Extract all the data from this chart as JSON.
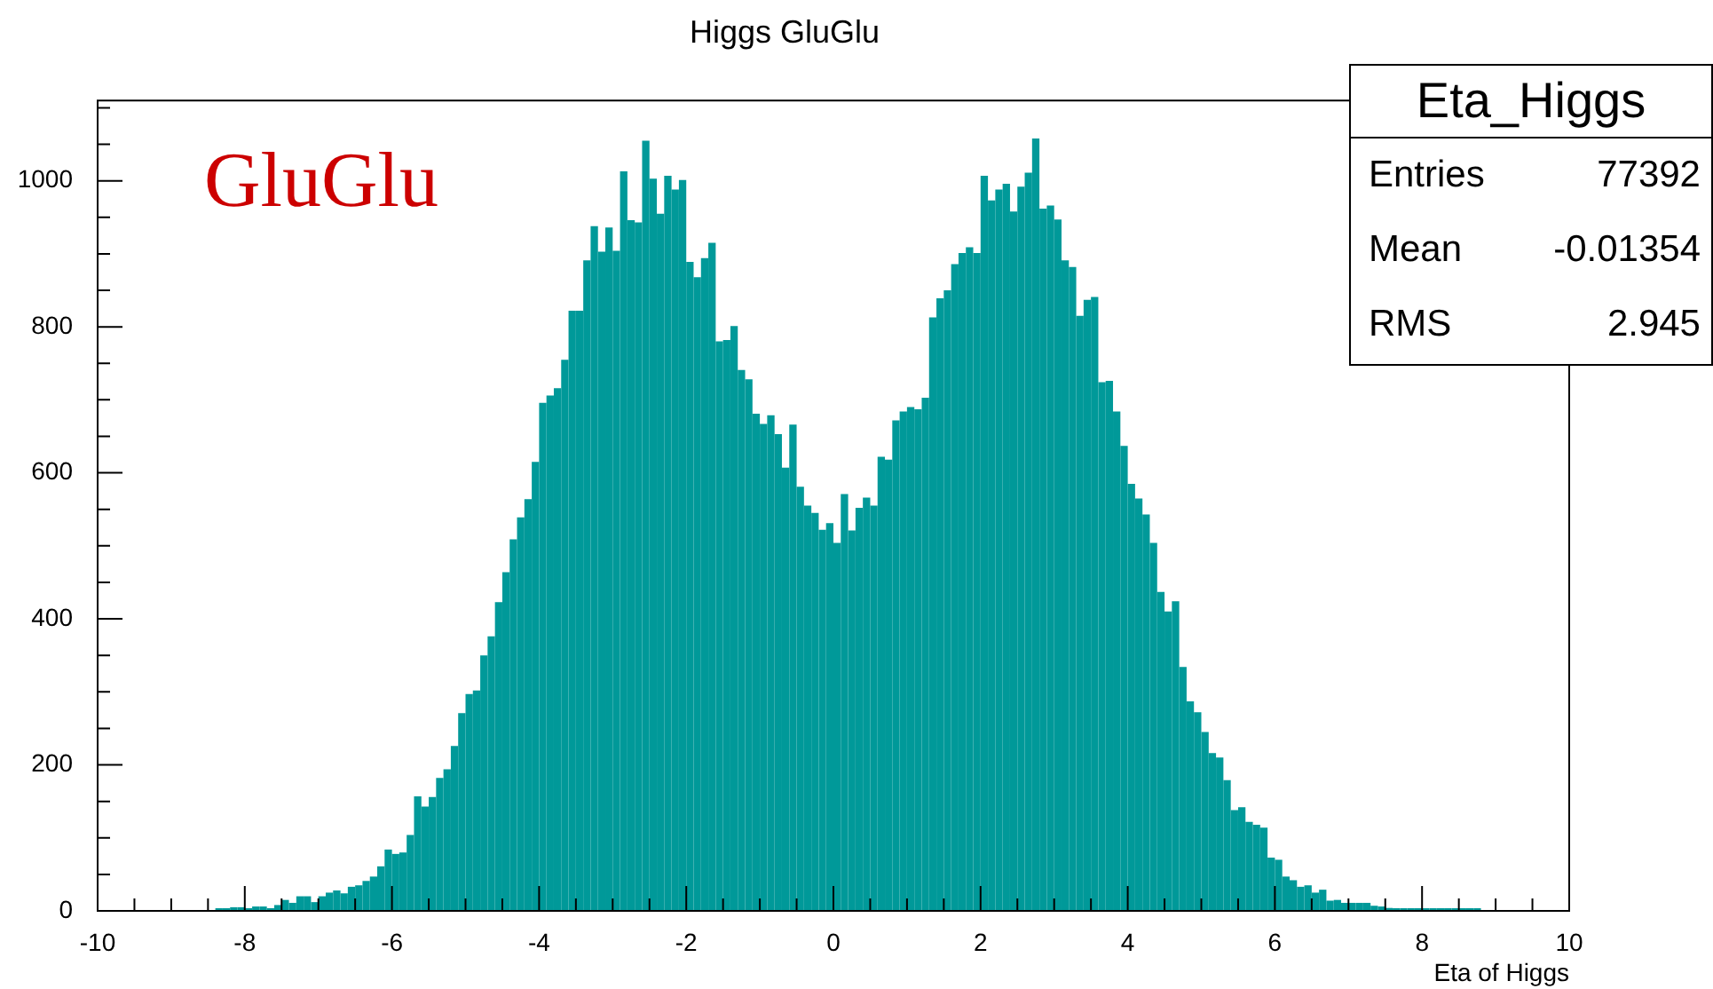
{
  "chart_data": {
    "type": "histogram",
    "title": "Higgs GluGlu",
    "xlabel": "Eta of Higgs",
    "color": "#009999",
    "annotations": [
      "GluGlu",
      "Eta_Higgs",
      "Entries",
      "77392",
      "Mean",
      "-0.01354",
      "RMS",
      "2.945"
    ],
    "bins": [
      -8.4,
      -8.3,
      -8.2,
      -8.1,
      -8.0,
      -7.9,
      -7.8,
      -7.7,
      -7.6,
      -7.5,
      -7.4,
      -7.3,
      -7.2,
      -7.1,
      -7.0,
      -6.9,
      -6.8,
      -6.7,
      -6.6,
      -6.5,
      -6.4,
      -6.3,
      -6.2,
      -6.1,
      -6.0,
      -5.9,
      -5.8,
      -5.7,
      -5.6,
      -5.5,
      -5.4,
      -5.3,
      -5.2,
      -5.1,
      -5.0,
      -4.9,
      -4.8,
      -4.7,
      -4.6,
      -4.5,
      -4.4,
      -4.3,
      -4.2,
      -4.1,
      -4.0,
      -3.9,
      -3.8,
      -3.7,
      -3.6,
      -3.5,
      -3.4,
      -3.3,
      -3.2,
      -3.1,
      -3.0,
      -2.9,
      -2.8,
      -2.7,
      -2.6,
      -2.5,
      -2.4,
      -2.3,
      -2.2,
      -2.1,
      -2.0,
      -1.9,
      -1.8,
      -1.7,
      -1.6,
      -1.5,
      -1.4,
      -1.3,
      -1.2,
      -1.1,
      -1.0,
      -0.9,
      -0.8,
      -0.7,
      -0.6,
      -0.5,
      -0.4,
      -0.3,
      -0.2,
      -0.1,
      0.0,
      0.1,
      0.2,
      0.3,
      0.4,
      0.5,
      0.6,
      0.7,
      0.8,
      0.9,
      1.0,
      1.1,
      1.2,
      1.3,
      1.4,
      1.5,
      1.6,
      1.7,
      1.8,
      1.9,
      2.0,
      2.1,
      2.2,
      2.3,
      2.4,
      2.5,
      2.6,
      2.7,
      2.8,
      2.9,
      3.0,
      3.1,
      3.2,
      3.3,
      3.4,
      3.5,
      3.6,
      3.7,
      3.8,
      3.9,
      4.0,
      4.1,
      4.2,
      4.3,
      4.4,
      4.5,
      4.6,
      4.7,
      4.8,
      4.9,
      5.0,
      5.1,
      5.2,
      5.3,
      5.4,
      5.5,
      5.6,
      5.7,
      5.8,
      5.9,
      6.0,
      6.1,
      6.2,
      6.3,
      6.4,
      6.5,
      6.6,
      6.7,
      6.8,
      6.9,
      7.0,
      7.1,
      7.2,
      7.3,
      7.4,
      7.5,
      7.6,
      7.7,
      7.8,
      7.9,
      8.0,
      8.1,
      8.2,
      8.3,
      8.4,
      8.5,
      8.6,
      8.7,
      8.8
    ],
    "values": [
      1,
      2,
      5,
      5,
      2,
      6,
      6,
      2,
      8,
      15,
      11,
      20,
      20,
      12,
      20,
      25,
      28,
      24,
      33,
      35,
      41,
      47,
      61,
      84,
      78,
      80,
      104,
      157,
      143,
      156,
      182,
      194,
      226,
      271,
      297,
      302,
      350,
      376,
      423,
      464,
      509,
      539,
      564,
      615,
      696,
      706,
      716,
      755,
      822,
      822,
      891,
      938,
      903,
      936,
      904,
      1013,
      946,
      943,
      1055,
      1003,
      955,
      1007,
      988,
      1001,
      889,
      868,
      894,
      915,
      780,
      782,
      801,
      741,
      728,
      681,
      667,
      679,
      653,
      607,
      666,
      581,
      555,
      545,
      522,
      531,
      504,
      571,
      521,
      552,
      566,
      555,
      622,
      618,
      672,
      684,
      690,
      687,
      703,
      813,
      839,
      850,
      886,
      901,
      909,
      901,
      1007,
      973,
      988,
      996,
      958,
      992,
      1011,
      1058,
      962,
      966,
      947,
      891,
      882,
      815,
      837,
      841,
      724,
      726,
      684,
      637,
      585,
      565,
      543,
      504,
      437,
      410,
      424,
      334,
      287,
      272,
      245,
      216,
      210,
      179,
      138,
      142,
      122,
      118,
      114,
      73,
      70,
      47,
      42,
      33,
      35,
      25,
      29,
      14,
      15,
      11,
      11,
      11,
      11,
      7,
      6,
      4,
      3,
      3,
      3,
      3,
      1,
      2,
      2,
      1,
      1,
      1,
      2,
      2
    ],
    "xlim": [
      -10,
      10
    ],
    "xticks": [
      -10,
      {
        "value": -9.5,
        "label": null
      },
      {
        "value": -9,
        "label": null
      },
      {
        "value": -8.5,
        "label": null
      },
      -8,
      {
        "value": -7.5,
        "label": null
      },
      {
        "value": -7,
        "label": null
      },
      {
        "value": -6.5,
        "label": null
      },
      -6,
      {
        "value": -5.5,
        "label": null
      },
      {
        "value": -5,
        "label": null
      },
      {
        "value": -4.5,
        "label": null
      },
      -4,
      {
        "value": -3.5,
        "label": null
      },
      {
        "value": -3,
        "label": null
      },
      {
        "value": -2.5,
        "label": null
      },
      -2,
      {
        "value": -1.5,
        "label": null
      },
      {
        "value": -1,
        "label": null
      },
      {
        "value": -0.5,
        "label": null
      },
      0,
      {
        "value": 0.5,
        "label": null
      },
      {
        "value": 1,
        "label": null
      },
      {
        "value": 1.5,
        "label": null
      },
      2,
      {
        "value": 2.5,
        "label": null
      },
      {
        "value": 3,
        "label": null
      },
      {
        "value": 3.5,
        "label": null
      },
      4,
      {
        "value": 4.5,
        "label": null
      },
      {
        "value": 5,
        "label": null
      },
      {
        "value": 5.5,
        "label": null
      },
      6,
      {
        "value": 6.5,
        "label": null
      },
      {
        "value": 7,
        "label": null
      },
      {
        "value": 7.5,
        "label": null
      },
      8,
      {
        "value": 8.5,
        "label": null
      },
      {
        "value": 9,
        "label": null
      },
      {
        "value": 9.5,
        "label": null
      },
      10
    ],
    "ylim": [
      0,
      1110
    ],
    "yticks": [
      0,
      {
        "value": 50,
        "label": null
      },
      {
        "value": 100,
        "label": null
      },
      {
        "value": 150,
        "label": null
      },
      200,
      {
        "value": 250,
        "label": null
      },
      {
        "value": 300,
        "label": null
      },
      {
        "value": 350,
        "label": null
      },
      400,
      {
        "value": 450,
        "label": null
      },
      {
        "value": 500,
        "label": null
      },
      {
        "value": 550,
        "label": null
      },
      600,
      {
        "value": 650,
        "label": null
      },
      {
        "value": 700,
        "label": null
      },
      {
        "value": 750,
        "label": null
      },
      800,
      {
        "value": 850,
        "label": null
      },
      {
        "value": 900,
        "label": null
      },
      {
        "value": 950,
        "label": null
      },
      1000,
      {
        "value": 1050,
        "label": null
      },
      {
        "value": 1100,
        "label": null
      }
    ]
  }
}
